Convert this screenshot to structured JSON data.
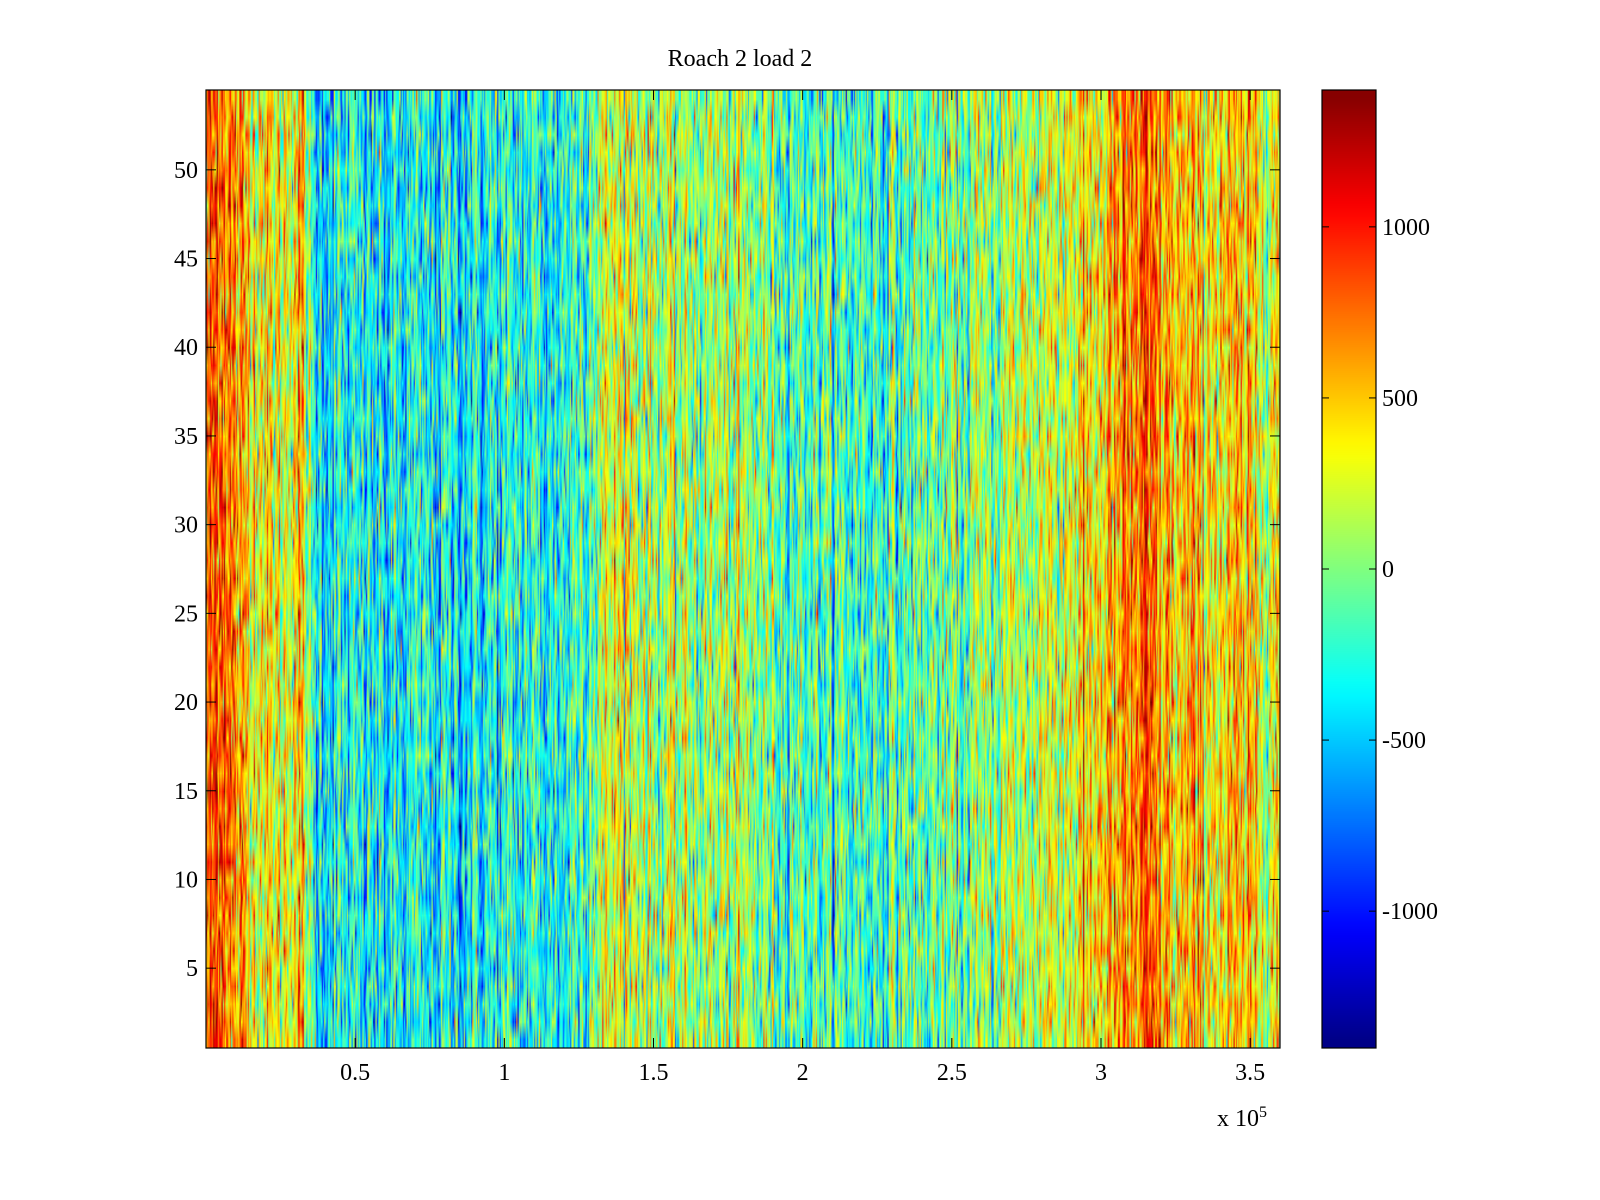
{
  "chart_data": {
    "type": "heatmap",
    "title": "Roach 2 load 2",
    "xlabel": "",
    "ylabel": "",
    "x_exponent_label": "x 10",
    "x_exponent_power": "5",
    "xlim": [
      0,
      3.6
    ],
    "ylim": [
      0.5,
      54.5
    ],
    "x_ticks": [
      0.5,
      1,
      1.5,
      2,
      2.5,
      3,
      3.5
    ],
    "x_tick_labels": [
      "0.5",
      "1",
      "1.5",
      "2",
      "2.5",
      "3",
      "3.5"
    ],
    "y_ticks": [
      5,
      10,
      15,
      20,
      25,
      30,
      35,
      40,
      45,
      50
    ],
    "y_tick_labels": [
      "5",
      "10",
      "15",
      "20",
      "25",
      "30",
      "35",
      "40",
      "45",
      "50"
    ],
    "rows": 54,
    "colormap": "jet",
    "clim": [
      -1400,
      1400
    ],
    "colorbar_ticks": [
      1000,
      500,
      0,
      -500,
      -1000
    ],
    "colorbar_tick_labels": [
      "1000",
      "500",
      "0",
      "-500",
      "-1000"
    ],
    "column_profile": [
      {
        "x": 0.0,
        "value": 600
      },
      {
        "x": 0.05,
        "value": 1000
      },
      {
        "x": 0.1,
        "value": 550
      },
      {
        "x": 0.25,
        "value": 250
      },
      {
        "x": 0.32,
        "value": 500
      },
      {
        "x": 0.36,
        "value": -350
      },
      {
        "x": 0.6,
        "value": -400
      },
      {
        "x": 1.2,
        "value": -300
      },
      {
        "x": 1.35,
        "value": 200
      },
      {
        "x": 1.4,
        "value": 300
      },
      {
        "x": 1.5,
        "value": 100
      },
      {
        "x": 1.8,
        "value": 50
      },
      {
        "x": 2.1,
        "value": -200
      },
      {
        "x": 2.5,
        "value": -100
      },
      {
        "x": 2.75,
        "value": 150
      },
      {
        "x": 2.9,
        "value": 300
      },
      {
        "x": 3.05,
        "value": 500
      },
      {
        "x": 3.15,
        "value": 750
      },
      {
        "x": 3.25,
        "value": 450
      },
      {
        "x": 3.6,
        "value": 350
      }
    ],
    "noise_amplitude": 380
  }
}
